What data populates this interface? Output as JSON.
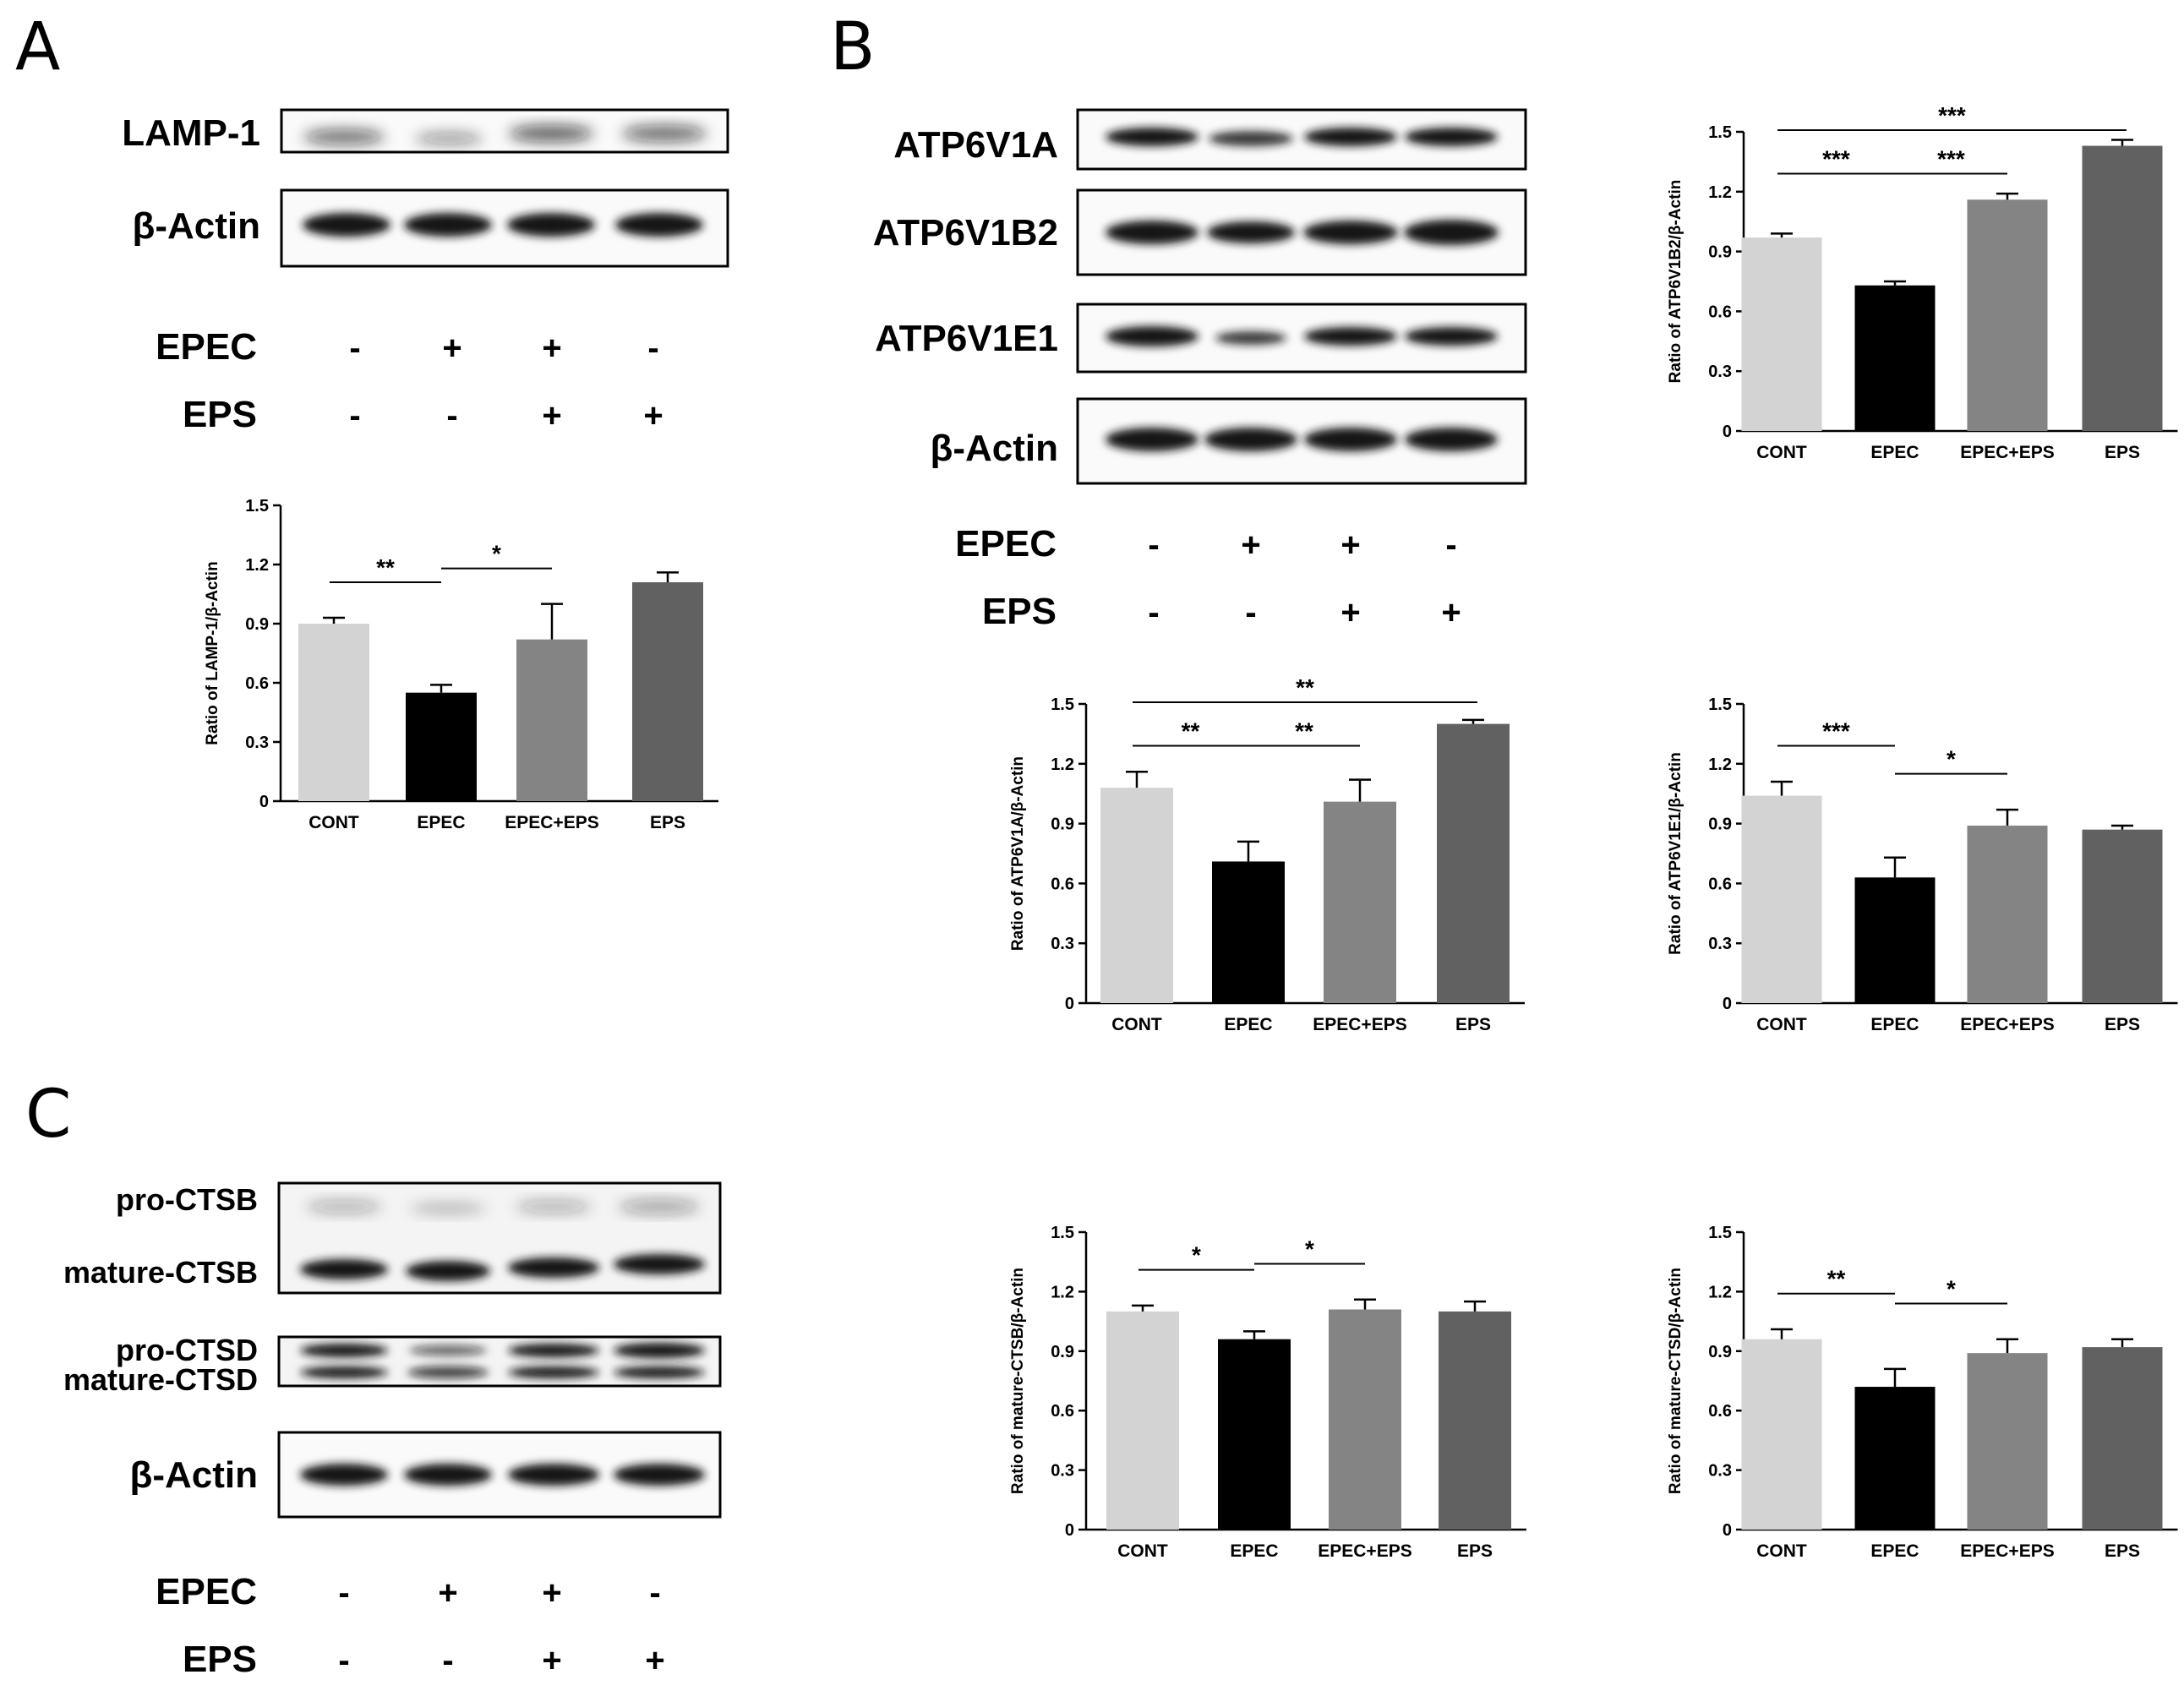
{
  "panels": {
    "A": "A",
    "B": "B",
    "C": "C"
  },
  "blot_labels": {
    "lamp1": "LAMP-1",
    "actin_A": "β-Actin",
    "atp6v1a": "ATP6V1A",
    "atp6v1b2": "ATP6V1B2",
    "atp6v1e1": "ATP6V1E1",
    "actin_B": "β-Actin",
    "pro_ctsb": "pro-CTSB",
    "mature_ctsb": "mature-CTSB",
    "pro_ctsd": "pro-CTSD",
    "mature_ctsd": "mature-CTSD",
    "actin_C": "β-Actin"
  },
  "conditions": {
    "epec_label": "EPEC",
    "eps_label": "EPS",
    "epec_signs": [
      "-",
      "+",
      "+",
      "-"
    ],
    "eps_signs": [
      "-",
      "-",
      "+",
      "+"
    ]
  },
  "colors": {
    "CONT": "#d3d3d3",
    "EPEC": "#000000",
    "EPEC+EPS": "#848484",
    "EPS": "#616161",
    "band": "#141414"
  },
  "chart_data": [
    {
      "id": "lamp1",
      "type": "bar",
      "categories": [
        "CONT",
        "EPEC",
        "EPEC+EPS",
        "EPS"
      ],
      "values": [
        0.9,
        0.55,
        0.82,
        1.11
      ],
      "errors": [
        0.03,
        0.04,
        0.18,
        0.05
      ],
      "ylabel": "Ratio of LAMP-1/β-Actin",
      "ylim": [
        0,
        1.5
      ],
      "yticks": [
        "0",
        "0.3",
        "0.6",
        "0.9",
        "1.2",
        "1.5"
      ],
      "significance": [
        {
          "from": 0,
          "to": 1,
          "label": "**"
        },
        {
          "from": 1,
          "to": 2,
          "label": "*"
        }
      ]
    },
    {
      "id": "atp6v1b2",
      "type": "bar",
      "categories": [
        "CONT",
        "EPEC",
        "EPEC+EPS",
        "EPS"
      ],
      "values": [
        0.97,
        0.73,
        1.16,
        1.43
      ],
      "errors": [
        0.02,
        0.02,
        0.03,
        0.03
      ],
      "ylabel": "Ratio of ATP6V1B2/β-Actin",
      "ylim": [
        0,
        1.5
      ],
      "yticks": [
        "0",
        "0.3",
        "0.6",
        "0.9",
        "1.2",
        "1.5"
      ],
      "significance": [
        {
          "from": 0,
          "to": 1,
          "label": "***"
        },
        {
          "from": 1,
          "to": 2,
          "label": "***"
        },
        {
          "from": 0,
          "to": 3,
          "label": "***"
        }
      ]
    },
    {
      "id": "atp6v1a",
      "type": "bar",
      "categories": [
        "CONT",
        "EPEC",
        "EPEC+EPS",
        "EPS"
      ],
      "values": [
        1.08,
        0.71,
        1.01,
        1.4
      ],
      "errors": [
        0.08,
        0.1,
        0.11,
        0.02
      ],
      "ylabel": "Ratio of ATP6V1A/β-Actin",
      "ylim": [
        0,
        1.5
      ],
      "yticks": [
        "0",
        "0.3",
        "0.6",
        "0.9",
        "1.2",
        "1.5"
      ],
      "significance": [
        {
          "from": 0,
          "to": 1,
          "label": "**"
        },
        {
          "from": 1,
          "to": 2,
          "label": "**"
        },
        {
          "from": 0,
          "to": 3,
          "label": "**"
        }
      ]
    },
    {
      "id": "atp6v1e1",
      "type": "bar",
      "categories": [
        "CONT",
        "EPEC",
        "EPEC+EPS",
        "EPS"
      ],
      "values": [
        1.04,
        0.63,
        0.89,
        0.87
      ],
      "errors": [
        0.07,
        0.1,
        0.08,
        0.02
      ],
      "ylabel": "Ratio of ATP6V1E1/β-Actin",
      "ylim": [
        0,
        1.5
      ],
      "yticks": [
        "0",
        "0.3",
        "0.6",
        "0.9",
        "1.2",
        "1.5"
      ],
      "significance": [
        {
          "from": 0,
          "to": 1,
          "label": "***"
        },
        {
          "from": 1,
          "to": 2,
          "label": "*"
        }
      ]
    },
    {
      "id": "mature_ctsb",
      "type": "bar",
      "categories": [
        "CONT",
        "EPEC",
        "EPEC+EPS",
        "EPS"
      ],
      "values": [
        1.1,
        0.96,
        1.11,
        1.1
      ],
      "errors": [
        0.03,
        0.04,
        0.05,
        0.05
      ],
      "ylabel": "Ratio of mature-CTSB/β-Actin",
      "ylim": [
        0,
        1.5
      ],
      "yticks": [
        "0",
        "0.3",
        "0.6",
        "0.9",
        "1.2",
        "1.5"
      ],
      "significance": [
        {
          "from": 0,
          "to": 1,
          "label": "*"
        },
        {
          "from": 1,
          "to": 2,
          "label": "*"
        }
      ]
    },
    {
      "id": "mature_ctsd",
      "type": "bar",
      "categories": [
        "CONT",
        "EPEC",
        "EPEC+EPS",
        "EPS"
      ],
      "values": [
        0.96,
        0.72,
        0.89,
        0.92
      ],
      "errors": [
        0.05,
        0.09,
        0.07,
        0.04
      ],
      "ylabel": "Ratio of mature-CTSD/β-Actin",
      "ylim": [
        0,
        1.5
      ],
      "yticks": [
        "0",
        "0.3",
        "0.6",
        "0.9",
        "1.2",
        "1.5"
      ],
      "significance": [
        {
          "from": 0,
          "to": 1,
          "label": "**"
        },
        {
          "from": 1,
          "to": 2,
          "label": "*"
        }
      ]
    }
  ]
}
